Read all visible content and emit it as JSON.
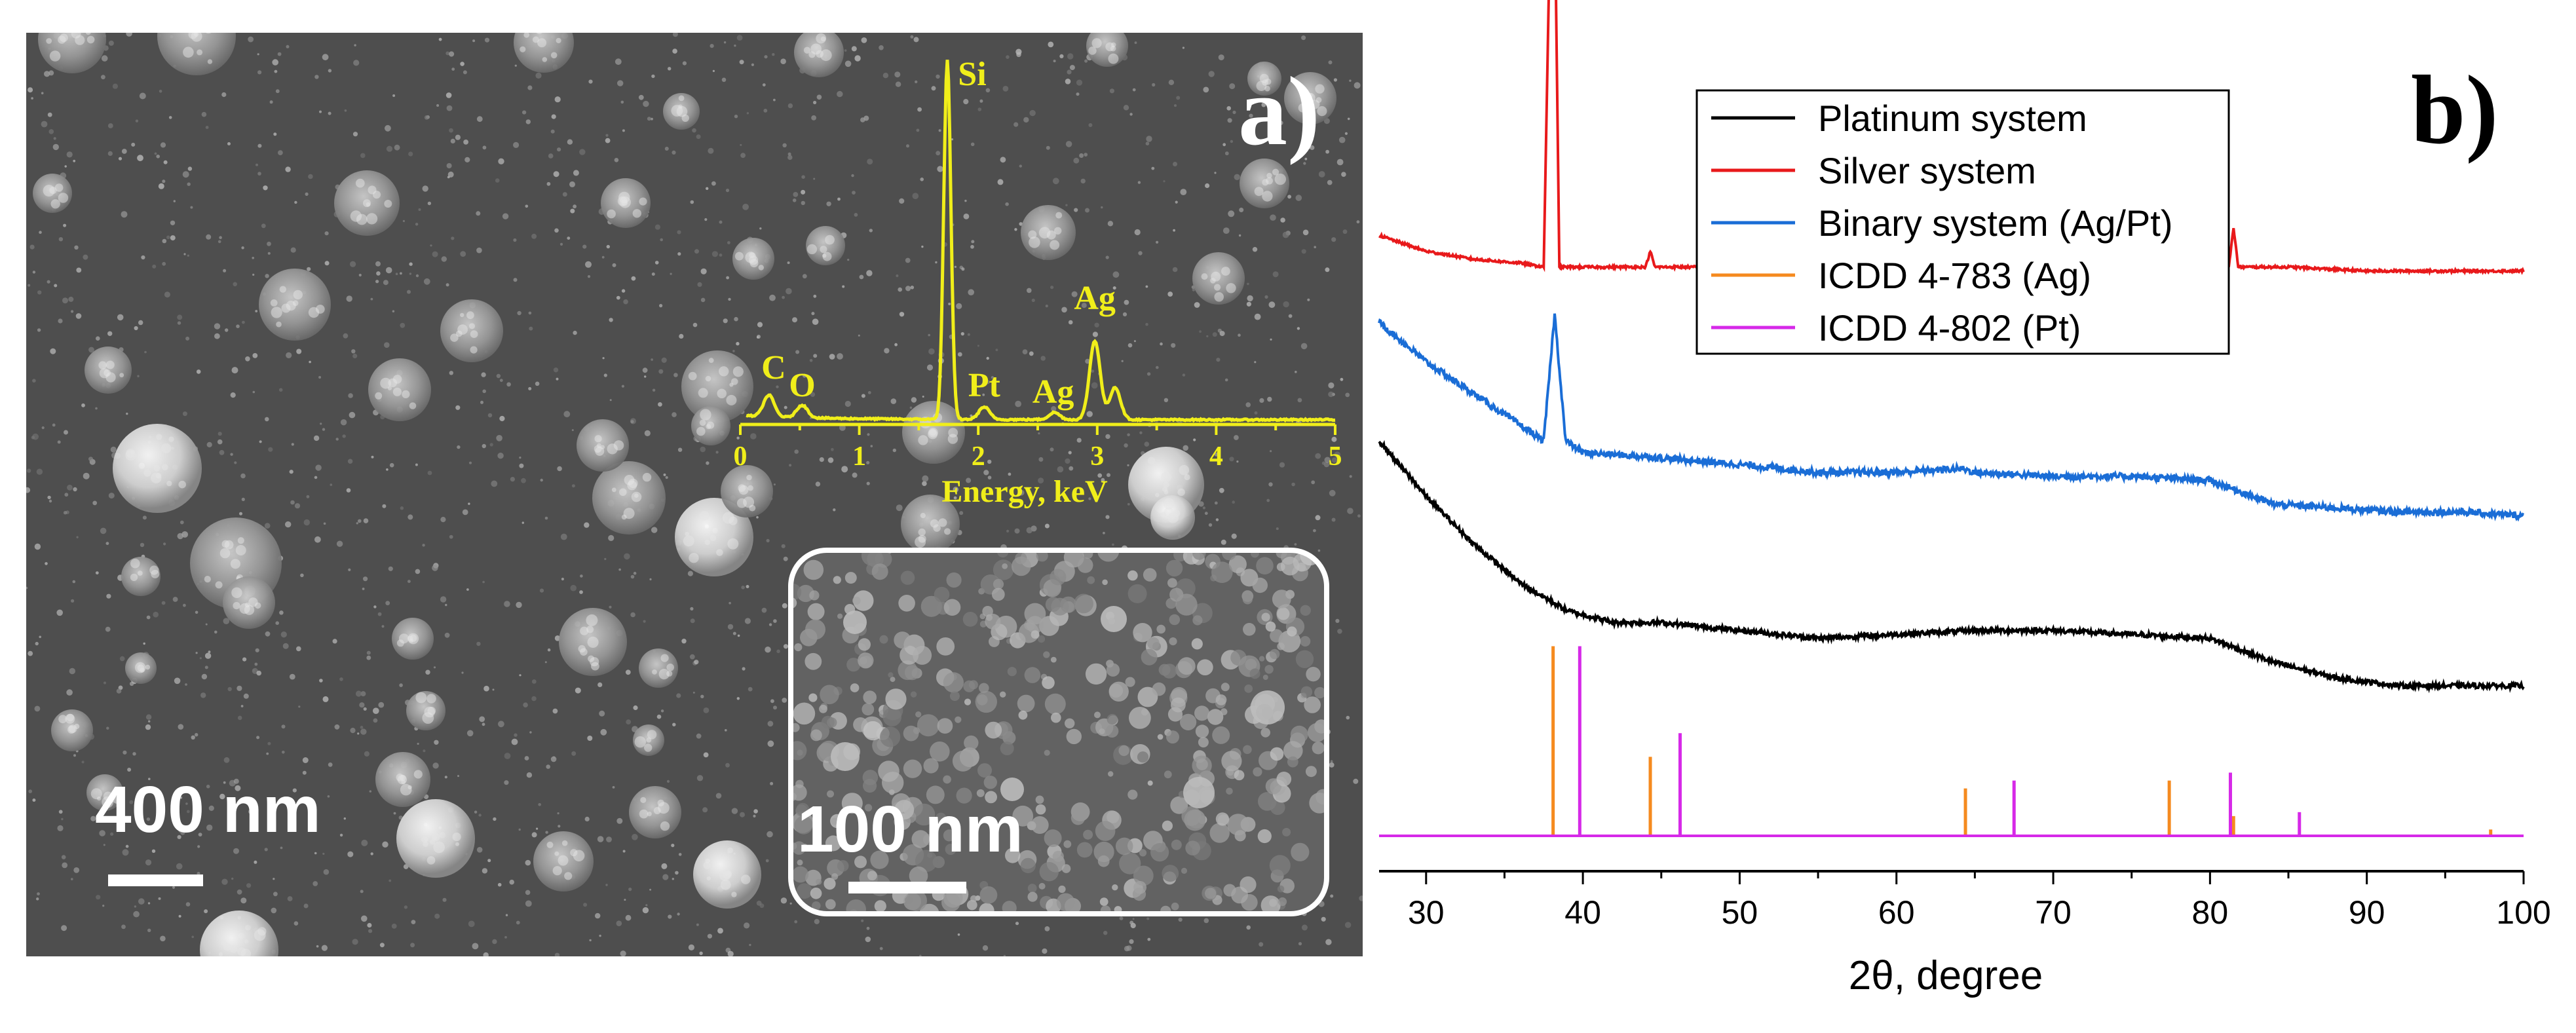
{
  "panel_a": {
    "panel_label": "a)",
    "scalebar_main": "400 nm",
    "scalebar_inset": "100 nm",
    "eds": {
      "xlabel": "Energy, keV",
      "xticks": [
        0,
        1,
        2,
        3,
        4,
        5
      ],
      "peak_labels": [
        {
          "text": "C",
          "energy": 0.28
        },
        {
          "text": "O",
          "energy": 0.52
        },
        {
          "text": "Si",
          "energy": 1.74
        },
        {
          "text": "Pt",
          "energy": 2.05
        },
        {
          "text": "Ag",
          "energy": 2.63
        },
        {
          "text": "Ag",
          "energy": 2.98
        }
      ],
      "peaks": [
        {
          "energy": 0.24,
          "height": 0.06
        },
        {
          "energy": 0.52,
          "height": 0.035
        },
        {
          "energy": 1.74,
          "height": 1.0
        },
        {
          "energy": 2.05,
          "height": 0.035
        },
        {
          "energy": 2.64,
          "height": 0.02
        },
        {
          "energy": 2.98,
          "height": 0.22
        },
        {
          "energy": 3.15,
          "height": 0.09
        }
      ],
      "color": "#f0ee1a"
    }
  },
  "panel_b": {
    "panel_label": "b)"
  },
  "chart_data": {
    "type": "line",
    "xlabel": "2θ, degree",
    "ylabel": "",
    "xlim": [
      27,
      100
    ],
    "xticks": [
      30,
      40,
      50,
      60,
      70,
      80,
      90,
      100
    ],
    "grid": false,
    "legend_position": "top-center",
    "series": [
      {
        "name": "Platinum system",
        "color": "#000000",
        "baseline": 0.0,
        "points": [
          [
            27,
            0.25
          ],
          [
            30,
            0.18
          ],
          [
            33,
            0.12
          ],
          [
            36,
            0.07
          ],
          [
            39,
            0.035
          ],
          [
            42,
            0.02
          ],
          [
            45,
            0.02
          ],
          [
            50,
            0.01
          ],
          [
            55,
            0.0
          ],
          [
            60,
            0.005
          ],
          [
            65,
            0.01
          ],
          [
            70,
            0.01
          ],
          [
            75,
            0.005
          ],
          [
            80,
            0.0
          ],
          [
            84,
            -0.03
          ],
          [
            88,
            -0.05
          ],
          [
            92,
            -0.06
          ],
          [
            96,
            -0.06
          ],
          [
            100,
            -0.06
          ]
        ]
      },
      {
        "name": "Silver system",
        "color": "#e8191b",
        "baseline": 0.47,
        "points": [
          [
            27,
            0.04
          ],
          [
            30,
            0.02
          ],
          [
            33,
            0.01
          ],
          [
            36,
            0.005
          ],
          [
            37.5,
            0.0
          ],
          [
            38.1,
            0.64
          ],
          [
            38.5,
            0.0
          ],
          [
            44.0,
            0.0
          ],
          [
            44.3,
            0.02
          ],
          [
            44.6,
            0.0
          ],
          [
            64.4,
            0.0
          ],
          [
            64.6,
            0.01
          ],
          [
            64.8,
            0.0
          ],
          [
            77.4,
            0.0
          ],
          [
            77.5,
            0.01
          ],
          [
            77.6,
            0.0
          ],
          [
            81.2,
            0.0
          ],
          [
            81.5,
            0.05
          ],
          [
            81.8,
            0.0
          ],
          [
            85,
            0.0
          ],
          [
            90,
            -0.005
          ],
          [
            100,
            -0.005
          ]
        ]
      },
      {
        "name": "Binary system (Ag/Pt)",
        "color": "#1a6dd6",
        "baseline": 0.13,
        "points": [
          [
            27,
            0.27
          ],
          [
            30,
            0.22
          ],
          [
            33,
            0.18
          ],
          [
            36,
            0.14
          ],
          [
            37.5,
            0.12
          ],
          [
            38.2,
            0.28
          ],
          [
            38.9,
            0.12
          ],
          [
            40,
            0.105
          ],
          [
            44,
            0.1
          ],
          [
            50,
            0.09
          ],
          [
            55,
            0.08
          ],
          [
            60,
            0.08
          ],
          [
            64.2,
            0.085
          ],
          [
            65,
            0.08
          ],
          [
            70,
            0.075
          ],
          [
            75,
            0.075
          ],
          [
            80,
            0.07
          ],
          [
            84,
            0.04
          ],
          [
            88,
            0.035
          ],
          [
            92,
            0.03
          ],
          [
            96,
            0.03
          ],
          [
            100,
            0.025
          ]
        ]
      },
      {
        "name": "ICDD 4-783 (Ag)",
        "color": "#f58a1f",
        "baseline": -0.25,
        "sticks": [
          [
            38.1,
            0.24
          ],
          [
            44.3,
            0.1
          ],
          [
            64.4,
            0.06
          ],
          [
            77.4,
            0.07
          ],
          [
            81.5,
            0.025
          ],
          [
            97.9,
            0.008
          ]
        ]
      },
      {
        "name": "ICDD 4-802 (Pt)",
        "color": "#d629e8",
        "baseline": -0.25,
        "sticks": [
          [
            39.8,
            0.24
          ],
          [
            46.2,
            0.13
          ],
          [
            67.5,
            0.07
          ],
          [
            81.3,
            0.08
          ],
          [
            85.7,
            0.03
          ]
        ]
      }
    ]
  }
}
